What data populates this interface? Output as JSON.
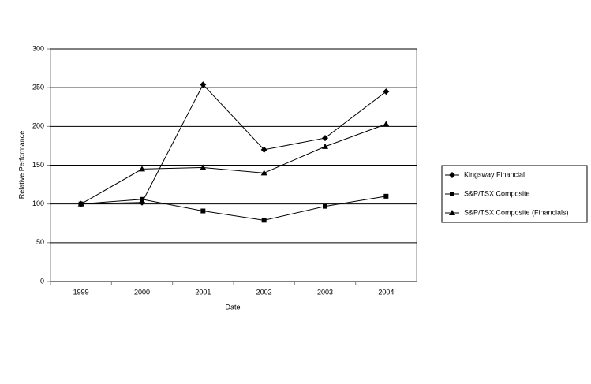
{
  "chart_data": {
    "type": "line",
    "x_label": "Date",
    "y_label": "Relative Performance",
    "categories": [
      "1999",
      "2000",
      "2001",
      "2002",
      "2003",
      "2004"
    ],
    "series": [
      {
        "name": "Kingsway Financial",
        "color": "#000000",
        "marker": "diamond",
        "values": [
          100,
          102,
          254,
          170,
          185,
          245
        ]
      },
      {
        "name": "S&P/TSX Composite",
        "color": "#000000",
        "marker": "square",
        "values": [
          100,
          106,
          91,
          79,
          97,
          110
        ]
      },
      {
        "name": "S&P/TSX Composite (Financials)",
        "color": "#000000",
        "marker": "triangle",
        "values": [
          100,
          145,
          147,
          140,
          174,
          203
        ]
      }
    ],
    "ylim": [
      0,
      300
    ],
    "yticks": [
      0,
      50,
      100,
      150,
      200,
      250,
      300
    ],
    "grid": true,
    "legend": "right"
  }
}
